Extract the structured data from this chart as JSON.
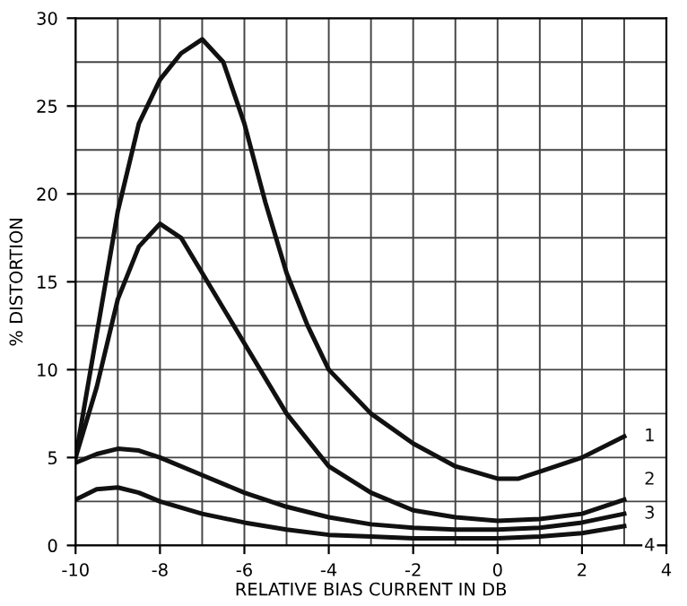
{
  "chart_data": {
    "type": "line",
    "xlabel": "RELATIVE BIAS CURRENT IN DB",
    "ylabel": "% DISTORTION",
    "xlim": [
      -10,
      4
    ],
    "ylim": [
      0,
      30
    ],
    "xticks": [
      -10,
      -8,
      -6,
      -4,
      -2,
      0,
      2,
      4
    ],
    "yticks": [
      0,
      5,
      10,
      15,
      20,
      25,
      30
    ],
    "grid": true,
    "legend": false,
    "marker": "none",
    "line_style": "solid",
    "series": [
      {
        "name": "1",
        "color": "#111111",
        "x": [
          -10,
          -9.5,
          -9,
          -8.5,
          -8,
          -7.5,
          -7,
          -6.5,
          -6,
          -5.5,
          -5,
          -4.5,
          -4,
          -3,
          -2,
          -1,
          0,
          0.5,
          1,
          2,
          3
        ],
        "values": [
          5,
          12,
          19,
          24,
          26.5,
          28,
          28.8,
          27.5,
          24,
          19.5,
          15.5,
          12.5,
          10,
          7.5,
          5.8,
          4.5,
          3.8,
          3.8,
          4.2,
          5,
          6.2
        ]
      },
      {
        "name": "2",
        "color": "#111111",
        "x": [
          -10,
          -9.5,
          -9,
          -8.5,
          -8,
          -7.5,
          -7,
          -6,
          -5,
          -4,
          -3,
          -2,
          -1,
          0,
          1,
          2,
          3
        ],
        "values": [
          5,
          9,
          14,
          17,
          18.3,
          17.5,
          15.5,
          11.5,
          7.5,
          4.5,
          3,
          2,
          1.6,
          1.4,
          1.5,
          1.8,
          2.6
        ]
      },
      {
        "name": "3",
        "color": "#111111",
        "x": [
          -10,
          -9.5,
          -9,
          -8.5,
          -8,
          -7,
          -6,
          -5,
          -4,
          -3,
          -2,
          -1,
          0,
          1,
          2,
          3
        ],
        "values": [
          4.7,
          5.2,
          5.5,
          5.4,
          5,
          4,
          3,
          2.2,
          1.6,
          1.2,
          1,
          0.9,
          0.9,
          1,
          1.3,
          1.8
        ]
      },
      {
        "name": "4",
        "color": "#111111",
        "x": [
          -10,
          -9.5,
          -9,
          -8.5,
          -8,
          -7,
          -6,
          -5,
          -4,
          -3,
          -2,
          -1,
          0,
          1,
          2,
          3
        ],
        "values": [
          2.6,
          3.2,
          3.3,
          3,
          2.5,
          1.8,
          1.3,
          0.9,
          0.6,
          0.5,
          0.4,
          0.4,
          0.4,
          0.5,
          0.7,
          1.1
        ]
      }
    ]
  }
}
